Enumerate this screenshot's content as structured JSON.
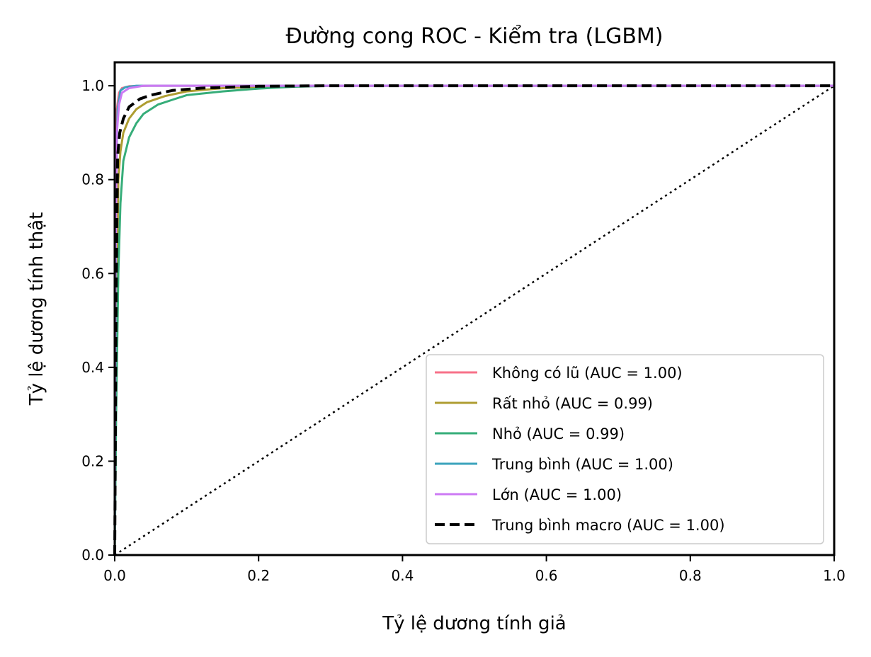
{
  "chart_data": {
    "type": "line",
    "title": "Đường cong ROC - Kiểm tra (LGBM)",
    "xlabel": "Tỷ lệ dương tính giả",
    "ylabel": "Tỷ lệ dương tính thật",
    "xlim": [
      0.0,
      1.0
    ],
    "ylim": [
      0.0,
      1.05
    ],
    "x_ticks": [
      "0.0",
      "0.2",
      "0.4",
      "0.6",
      "0.8",
      "1.0"
    ],
    "y_ticks": [
      "0.0",
      "0.2",
      "0.4",
      "0.6",
      "0.8",
      "1.0"
    ],
    "grid": false,
    "legend_position": "lower-right",
    "series": [
      {
        "name": "Không có lũ (AUC = 1.00)",
        "color": "#f77189",
        "style": "solid",
        "points": [
          [
            0.0,
            0.0
          ],
          [
            0.0,
            0.4
          ],
          [
            0.001,
            0.8
          ],
          [
            0.003,
            0.95
          ],
          [
            0.006,
            0.985
          ],
          [
            0.01,
            0.995
          ],
          [
            0.02,
            0.999
          ],
          [
            0.05,
            1.0
          ],
          [
            1.0,
            1.0
          ]
        ]
      },
      {
        "name": "Rất nhỏ (AUC = 0.99)",
        "color": "#ae9d31",
        "style": "solid",
        "points": [
          [
            0.0,
            0.0
          ],
          [
            0.002,
            0.45
          ],
          [
            0.005,
            0.8
          ],
          [
            0.008,
            0.86
          ],
          [
            0.012,
            0.9
          ],
          [
            0.02,
            0.93
          ],
          [
            0.03,
            0.95
          ],
          [
            0.045,
            0.965
          ],
          [
            0.07,
            0.978
          ],
          [
            0.1,
            0.988
          ],
          [
            0.15,
            0.995
          ],
          [
            0.2,
            0.998
          ],
          [
            0.3,
            1.0
          ],
          [
            1.0,
            1.0
          ]
        ]
      },
      {
        "name": "Nhỏ (AUC = 0.99)",
        "color": "#36ad79",
        "style": "solid",
        "points": [
          [
            0.0,
            0.0
          ],
          [
            0.002,
            0.3
          ],
          [
            0.005,
            0.6
          ],
          [
            0.008,
            0.75
          ],
          [
            0.012,
            0.84
          ],
          [
            0.02,
            0.89
          ],
          [
            0.03,
            0.92
          ],
          [
            0.04,
            0.94
          ],
          [
            0.06,
            0.96
          ],
          [
            0.08,
            0.97
          ],
          [
            0.1,
            0.98
          ],
          [
            0.15,
            0.988
          ],
          [
            0.2,
            0.994
          ],
          [
            0.25,
            0.998
          ],
          [
            0.3,
            1.0
          ],
          [
            1.0,
            1.0
          ]
        ]
      },
      {
        "name": "Trung bình (AUC = 1.00)",
        "color": "#3ba3bc",
        "style": "solid",
        "points": [
          [
            0.0,
            0.0
          ],
          [
            0.001,
            0.5
          ],
          [
            0.002,
            0.8
          ],
          [
            0.004,
            0.95
          ],
          [
            0.008,
            0.99
          ],
          [
            0.015,
            0.997
          ],
          [
            0.03,
            1.0
          ],
          [
            1.0,
            1.0
          ]
        ]
      },
      {
        "name": "Lớn (AUC = 1.00)",
        "color": "#cc7af4",
        "style": "solid",
        "points": [
          [
            0.0,
            0.0
          ],
          [
            0.001,
            0.6
          ],
          [
            0.003,
            0.9
          ],
          [
            0.006,
            0.96
          ],
          [
            0.01,
            0.985
          ],
          [
            0.02,
            0.995
          ],
          [
            0.04,
            1.0
          ],
          [
            1.0,
            1.0
          ]
        ]
      },
      {
        "name": "Trung bình macro (AUC = 1.00)",
        "color": "#000000",
        "style": "dashed",
        "points": [
          [
            0.0,
            0.0
          ],
          [
            0.002,
            0.55
          ],
          [
            0.004,
            0.85
          ],
          [
            0.007,
            0.9
          ],
          [
            0.012,
            0.93
          ],
          [
            0.02,
            0.955
          ],
          [
            0.035,
            0.972
          ],
          [
            0.05,
            0.98
          ],
          [
            0.08,
            0.99
          ],
          [
            0.12,
            0.995
          ],
          [
            0.2,
            0.999
          ],
          [
            0.3,
            1.0
          ],
          [
            1.0,
            1.0
          ]
        ]
      }
    ],
    "reference_line": {
      "style": "dotted",
      "color": "#000000",
      "points": [
        [
          0.0,
          0.0
        ],
        [
          1.0,
          1.0
        ]
      ]
    }
  }
}
